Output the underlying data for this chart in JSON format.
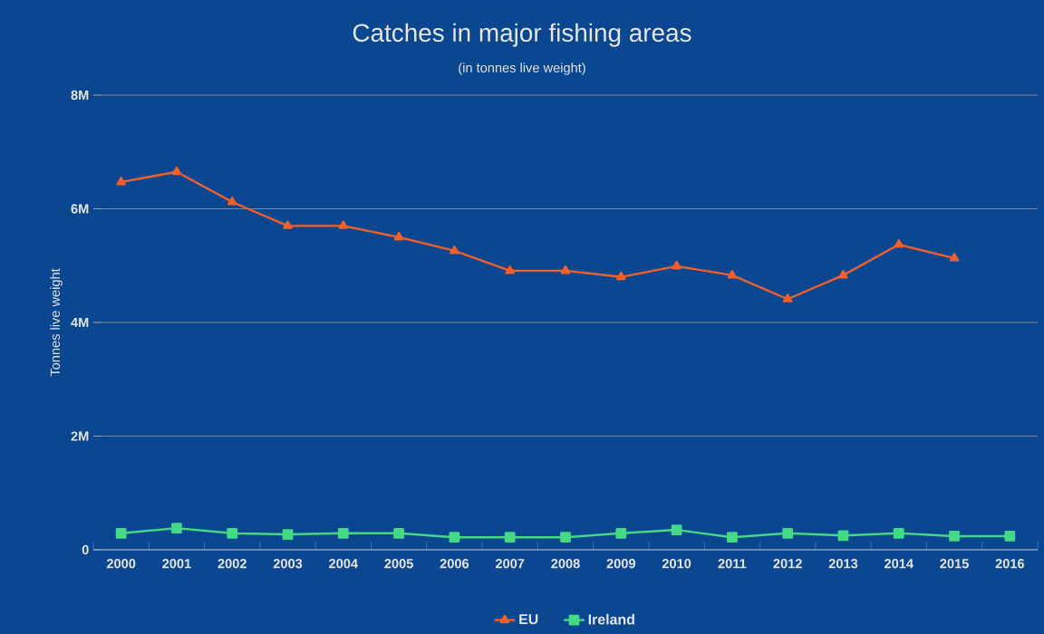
{
  "chart_data": {
    "type": "line",
    "title": "Catches in major fishing areas",
    "subtitle": "(in tonnes live weight)",
    "ylabel": "Tonnes live weight",
    "categories": [
      "2000",
      "2001",
      "2002",
      "2003",
      "2004",
      "2005",
      "2006",
      "2007",
      "2008",
      "2009",
      "2010",
      "2011",
      "2012",
      "2013",
      "2014",
      "2015",
      "2016"
    ],
    "series": [
      {
        "name": "EU",
        "color": "#f4602a",
        "marker": "triangle",
        "values": [
          6470000,
          6650000,
          6120000,
          5700000,
          5700000,
          5500000,
          5260000,
          4910000,
          4910000,
          4800000,
          4990000,
          4830000,
          4410000,
          4830000,
          5370000,
          5130000,
          null
        ]
      },
      {
        "name": "Ireland",
        "color": "#45d986",
        "marker": "square",
        "values": [
          290000,
          380000,
          290000,
          270000,
          290000,
          290000,
          220000,
          220000,
          220000,
          290000,
          350000,
          220000,
          290000,
          250000,
          290000,
          240000,
          240000
        ]
      }
    ],
    "ylim": [
      0,
      8000000
    ],
    "yticks": [
      {
        "value": 0,
        "label": "0"
      },
      {
        "value": 2000000,
        "label": "2M"
      },
      {
        "value": 4000000,
        "label": "4M"
      },
      {
        "value": 6000000,
        "label": "6M"
      },
      {
        "value": 8000000,
        "label": "8M"
      }
    ],
    "grid": "y",
    "legend": "bottom",
    "line_style": "solid"
  }
}
